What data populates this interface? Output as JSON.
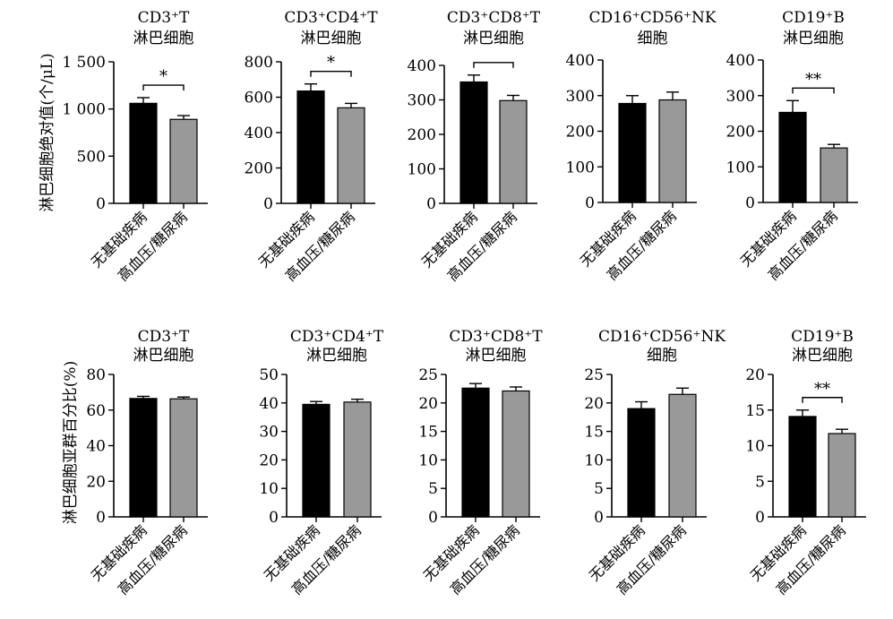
{
  "row_ylabels": [
    "淋巴细胞绝对值(个/μL)",
    "淋巴细胞亚群百分比(%)"
  ],
  "bar_colors": [
    "#000000",
    "#999999"
  ],
  "chart_data": [
    {
      "type": "bar",
      "title_lines": [
        "CD3⁺T",
        "淋巴细胞"
      ],
      "categories": [
        "无基础疾病",
        "高血压/糖尿病"
      ],
      "values": [
        1060,
        890
      ],
      "errors": [
        60,
        40
      ],
      "ylim": [
        0,
        1500
      ],
      "yticks": [
        0,
        500,
        1000,
        1500
      ],
      "ytick_labels": [
        "0",
        "500",
        "1 000",
        "1 500"
      ],
      "sig": "*"
    },
    {
      "type": "bar",
      "title_lines": [
        "CD3⁺CD4⁺T",
        "淋巴细胞"
      ],
      "categories": [
        "无基础疾病",
        "高血压/糖尿病"
      ],
      "values": [
        635,
        540
      ],
      "errors": [
        40,
        25
      ],
      "ylim": [
        0,
        800
      ],
      "yticks": [
        0,
        200,
        400,
        600,
        800
      ],
      "ytick_labels": [
        "0",
        "200",
        "400",
        "600",
        "800"
      ],
      "sig": "*"
    },
    {
      "type": "bar",
      "title_lines": [
        "CD3⁺CD8⁺T",
        "淋巴细胞"
      ],
      "categories": [
        "无基础疾病",
        "高血压/糖尿病"
      ],
      "values": [
        352,
        298
      ],
      "errors": [
        20,
        15
      ],
      "ylim": [
        0,
        400
      ],
      "yticks": [
        0,
        100,
        200,
        300,
        400
      ],
      "ytick_labels": [
        "0",
        "100",
        "200",
        "300",
        "400"
      ],
      "sig": ""
    },
    {
      "type": "bar",
      "title_lines": [
        "CD16⁺CD56⁺NK",
        "细胞"
      ],
      "categories": [
        "无基础疾病",
        "高血压/糖尿病"
      ],
      "values": [
        278,
        288
      ],
      "errors": [
        22,
        22
      ],
      "ylim": [
        0,
        400
      ],
      "yticks": [
        0,
        100,
        200,
        300,
        400
      ],
      "ytick_labels": [
        "0",
        "100",
        "200",
        "300",
        "400"
      ],
      "sig": null
    },
    {
      "type": "bar",
      "title_lines": [
        "CD19⁺B",
        "淋巴细胞"
      ],
      "categories": [
        "无基础疾病",
        "高血压/糖尿病"
      ],
      "values": [
        253,
        153
      ],
      "errors": [
        33,
        10
      ],
      "ylim": [
        0,
        400
      ],
      "yticks": [
        0,
        100,
        200,
        300,
        400
      ],
      "ytick_labels": [
        "0",
        "100",
        "200",
        "300",
        "400"
      ],
      "sig": "**"
    },
    {
      "type": "bar",
      "title_lines": [
        "CD3⁺T",
        "淋巴细胞"
      ],
      "categories": [
        "无基础疾病",
        "高血压/糖尿病"
      ],
      "values": [
        66.5,
        66.3
      ],
      "errors": [
        1.2,
        1.0
      ],
      "ylim": [
        0,
        80
      ],
      "yticks": [
        0,
        20,
        40,
        60,
        80
      ],
      "ytick_labels": [
        "0",
        "20",
        "40",
        "60",
        "80"
      ],
      "sig": null
    },
    {
      "type": "bar",
      "title_lines": [
        "CD3⁺CD4⁺T",
        "淋巴细胞"
      ],
      "categories": [
        "无基础疾病",
        "高血压/糖尿病"
      ],
      "values": [
        39.5,
        40.3
      ],
      "errors": [
        1.0,
        1.0
      ],
      "ylim": [
        0,
        50
      ],
      "yticks": [
        0,
        10,
        20,
        30,
        40,
        50
      ],
      "ytick_labels": [
        "0",
        "10",
        "20",
        "30",
        "40",
        "50"
      ],
      "sig": null
    },
    {
      "type": "bar",
      "title_lines": [
        "CD3⁺CD8⁺T",
        "淋巴细胞"
      ],
      "categories": [
        "无基础疾病",
        "高血压/糖尿病"
      ],
      "values": [
        22.6,
        22.1
      ],
      "errors": [
        0.8,
        0.7
      ],
      "ylim": [
        0,
        25
      ],
      "yticks": [
        0,
        5,
        10,
        15,
        20,
        25
      ],
      "ytick_labels": [
        "0",
        "5",
        "10",
        "15",
        "20",
        "25"
      ],
      "sig": null
    },
    {
      "type": "bar",
      "title_lines": [
        "CD16⁺CD56⁺NK",
        "细胞"
      ],
      "categories": [
        "无基础疾病",
        "高血压/糖尿病"
      ],
      "values": [
        19.0,
        21.5
      ],
      "errors": [
        1.2,
        1.1
      ],
      "ylim": [
        0,
        25
      ],
      "yticks": [
        0,
        5,
        10,
        15,
        20,
        25
      ],
      "ytick_labels": [
        "0",
        "5",
        "10",
        "15",
        "20",
        "25"
      ],
      "sig": null
    },
    {
      "type": "bar",
      "title_lines": [
        "CD19⁺B",
        "淋巴细胞"
      ],
      "categories": [
        "无基础疾病",
        "高血压/糖尿病"
      ],
      "values": [
        14.1,
        11.7
      ],
      "errors": [
        0.9,
        0.6
      ],
      "ylim": [
        0,
        20
      ],
      "yticks": [
        0,
        5,
        10,
        15,
        20
      ],
      "ytick_labels": [
        "0",
        "5",
        "10",
        "15",
        "20"
      ],
      "sig": "**"
    }
  ]
}
